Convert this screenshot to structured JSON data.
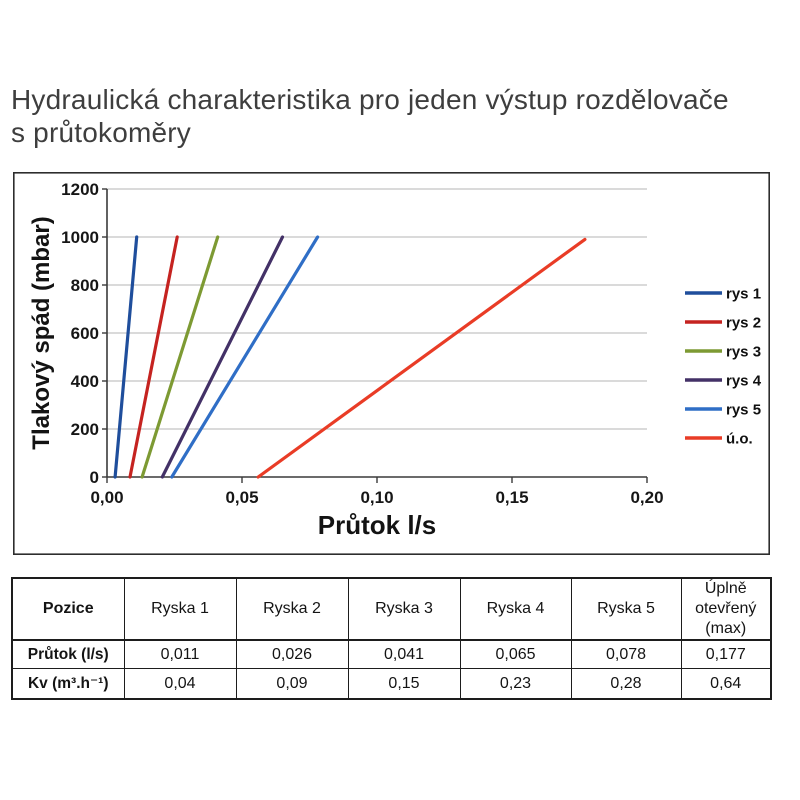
{
  "page": {
    "title_line1": "Hydraulická charakteristika pro jeden výstup rozdělovače",
    "title_line2": "s průtokoměry"
  },
  "chart_data": {
    "type": "line",
    "title": "",
    "xlabel": "Průtok l/s",
    "ylabel": "Tlakový spád (mbar)",
    "xlim": [
      0,
      0.2
    ],
    "ylim": [
      0,
      1200
    ],
    "grid": "horizontal",
    "legend_position": "right",
    "x_ticks": [
      0,
      0.05,
      0.1,
      0.15,
      0.2
    ],
    "x_tick_labels": [
      "0,00",
      "0,05",
      "0,10",
      "0,15",
      "0,20"
    ],
    "y_ticks": [
      0,
      200,
      400,
      600,
      800,
      1000,
      1200
    ],
    "y_tick_labels": [
      "0",
      "200",
      "400",
      "600",
      "800",
      "1000",
      "1200"
    ],
    "series": [
      {
        "name": "rys 1",
        "color": "#1f4e9c",
        "points": [
          [
            0.003,
            0
          ],
          [
            0.011,
            1000
          ]
        ]
      },
      {
        "name": "rys 2",
        "color": "#c52320",
        "points": [
          [
            0.0085,
            0
          ],
          [
            0.026,
            1000
          ]
        ]
      },
      {
        "name": "rys 3",
        "color": "#7d9a33",
        "points": [
          [
            0.013,
            0
          ],
          [
            0.041,
            1000
          ]
        ]
      },
      {
        "name": "rys 4",
        "color": "#433167",
        "points": [
          [
            0.0205,
            0
          ],
          [
            0.065,
            1000
          ]
        ]
      },
      {
        "name": "rys 5",
        "color": "#2f6ec6",
        "points": [
          [
            0.024,
            0
          ],
          [
            0.078,
            1000
          ]
        ]
      },
      {
        "name": "ú.o.",
        "color": "#e93c26",
        "points": [
          [
            0.056,
            0
          ],
          [
            0.177,
            990
          ]
        ]
      }
    ]
  },
  "table": {
    "columns": [
      "Pozice",
      "Ryska 1",
      "Ryska 2",
      "Ryska 3",
      "Ryska 4",
      "Ryska 5",
      "Úplně otevřený (max)"
    ],
    "rows": [
      {
        "label": "Průtok (l/s)",
        "values": [
          "0,011",
          "0,026",
          "0,041",
          "0,065",
          "0,078",
          "0,177"
        ]
      },
      {
        "label": "Kv (m³.h⁻¹)",
        "values": [
          "0,04",
          "0,09",
          "0,15",
          "0,23",
          "0,28",
          "0,64"
        ]
      }
    ]
  }
}
